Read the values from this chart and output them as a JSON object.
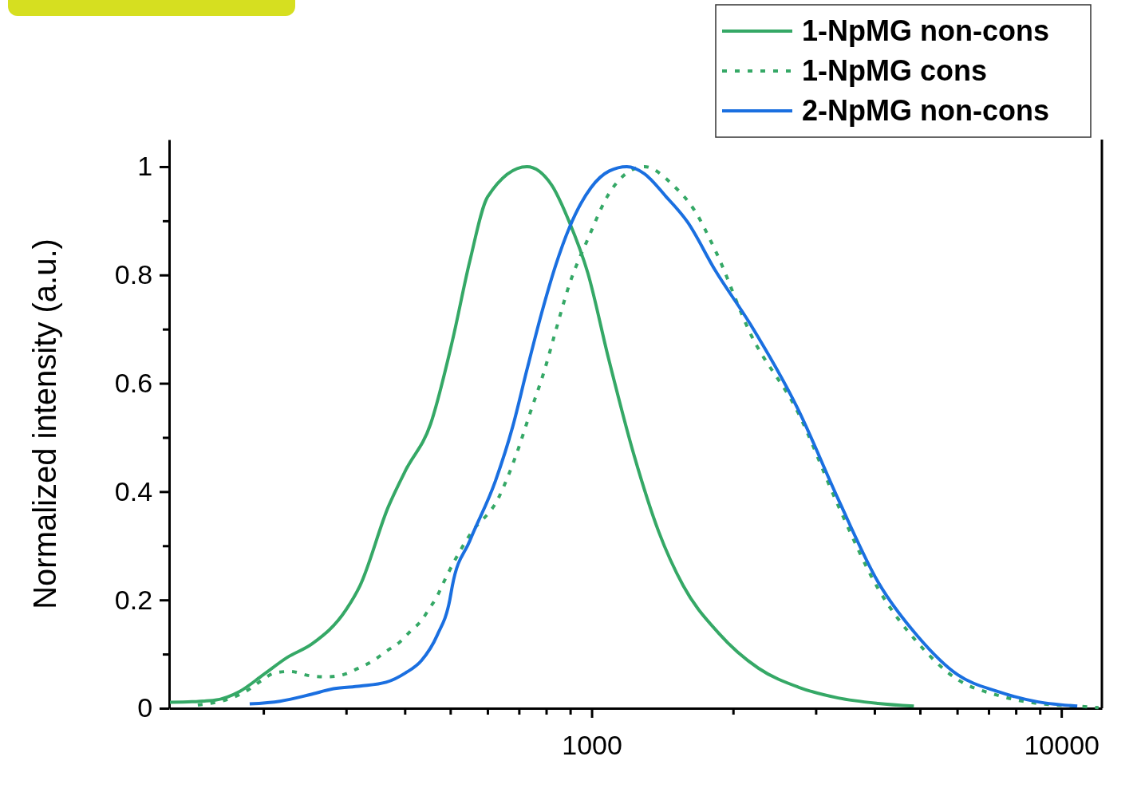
{
  "chart_data": {
    "type": "line",
    "ylabel": "Normalized intensity (a.u.)",
    "log": "x",
    "legend": "top right",
    "xlim": [
      126,
      12200
    ],
    "ylim": [
      0,
      1.05
    ],
    "xticks": [
      {
        "value": 200,
        "label": null
      },
      {
        "value": 300,
        "label": null
      },
      {
        "value": 400,
        "label": null
      },
      {
        "value": 500,
        "label": null
      },
      {
        "value": 600,
        "label": null
      },
      {
        "value": 700,
        "label": null
      },
      {
        "value": 800,
        "label": null
      },
      {
        "value": 900,
        "label": null
      },
      {
        "value": 1000,
        "label": "1000"
      },
      {
        "value": 2000,
        "label": null
      },
      {
        "value": 3000,
        "label": null
      },
      {
        "value": 4000,
        "label": null
      },
      {
        "value": 5000,
        "label": null
      },
      {
        "value": 6000,
        "label": null
      },
      {
        "value": 7000,
        "label": null
      },
      {
        "value": 8000,
        "label": null
      },
      {
        "value": 9000,
        "label": null
      },
      10000
    ],
    "yticks": [
      0,
      {
        "value": 0.1,
        "label": null
      },
      0.2,
      {
        "value": 0.3,
        "label": null
      },
      0.4,
      {
        "value": 0.5,
        "label": null
      },
      0.6,
      {
        "value": 0.7,
        "label": null
      },
      0.8,
      {
        "value": 0.9,
        "label": null
      },
      1
    ],
    "series": [
      {
        "name": "1-NpMG non-cons",
        "color": "#35a866",
        "line_style": "solid",
        "x": [
          126.5,
          141,
          158,
          178,
          200,
          225,
          254,
          300,
          321,
          369,
          402,
          454,
          505,
          550,
          601,
          728,
          822,
          896,
          981,
          1086,
          1231,
          1389,
          1567,
          1862,
          2264,
          2754,
          3349,
          4072,
          4853
        ],
        "values": [
          0.011,
          0.012,
          0.015,
          0.031,
          0.062,
          0.094,
          0.119,
          0.182,
          0.226,
          0.372,
          0.44,
          0.525,
          0.678,
          0.825,
          0.945,
          1.0,
          0.966,
          0.898,
          0.804,
          0.646,
          0.467,
          0.326,
          0.226,
          0.139,
          0.074,
          0.039,
          0.019,
          0.009,
          0.004
        ]
      },
      {
        "name": "1-NpMG cons",
        "color": "#35a866",
        "line_style": "dotted",
        "x": [
          145,
          171,
          185,
          198,
          211,
          228,
          251,
          271,
          296,
          317,
          343,
          365,
          390,
          410,
          434,
          451,
          469,
          480,
          550,
          633,
          690,
          740,
          794,
          839,
          896,
          981,
          1090,
          1206,
          1295,
          1489,
          1656,
          1834,
          2177,
          2754,
          3349,
          4072,
          4945,
          6012,
          7311,
          8892,
          10813,
          12000
        ],
        "values": [
          0.006,
          0.019,
          0.033,
          0.051,
          0.065,
          0.068,
          0.06,
          0.058,
          0.062,
          0.073,
          0.088,
          0.105,
          0.122,
          0.141,
          0.162,
          0.184,
          0.207,
          0.226,
          0.32,
          0.388,
          0.467,
          0.546,
          0.625,
          0.698,
          0.782,
          0.866,
          0.951,
          0.992,
          1.0,
          0.966,
          0.919,
          0.845,
          0.692,
          0.545,
          0.374,
          0.221,
          0.121,
          0.053,
          0.024,
          0.009,
          0.004,
          0.001
        ]
      },
      {
        "name": "2-NpMG non-cons",
        "color": "#1a6fe0",
        "line_style": "solid",
        "x": [
          187,
          217,
          251,
          282,
          321,
          365,
          401,
          434,
          469,
          499,
          505,
          550,
          624,
          679,
          728,
          782,
          839,
          896,
          996,
          1090,
          1188,
          1295,
          1439,
          1599,
          1834,
          2177,
          2754,
          3349,
          4072,
          4945,
          6012,
          7311,
          8892,
          10813
        ],
        "values": [
          0.008,
          0.013,
          0.025,
          0.036,
          0.041,
          0.048,
          0.065,
          0.088,
          0.135,
          0.201,
          0.226,
          0.309,
          0.42,
          0.52,
          0.625,
          0.729,
          0.819,
          0.887,
          0.961,
          0.992,
          1.0,
          0.987,
          0.945,
          0.898,
          0.808,
          0.709,
          0.551,
          0.386,
          0.233,
          0.133,
          0.062,
          0.031,
          0.012,
          0.004
        ]
      }
    ]
  }
}
